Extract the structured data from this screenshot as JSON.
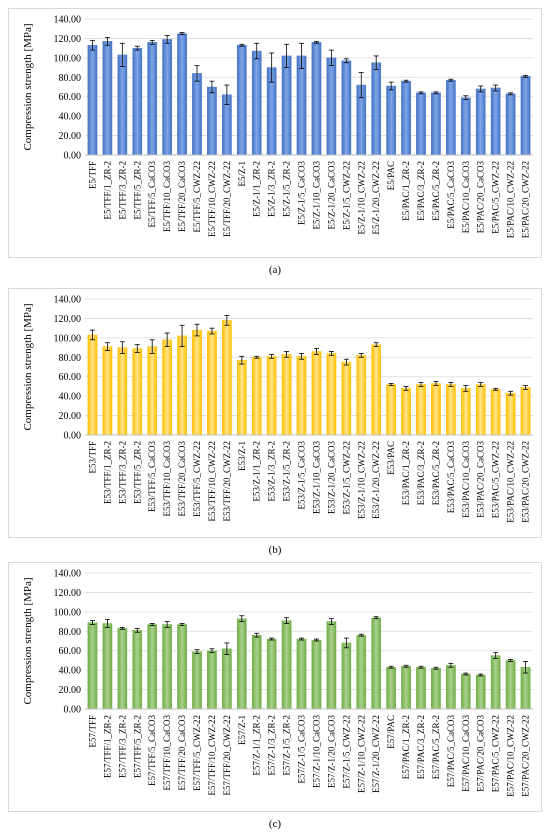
{
  "chart_data": [
    {
      "type": "bar",
      "panel_label": "(a)",
      "ylabel": "Compression strength [MPa]",
      "ylim": [
        0,
        140
      ],
      "yticks": [
        "0.00",
        "20.00",
        "40.00",
        "60.00",
        "80.00",
        "100.00",
        "120.00",
        "140.00"
      ],
      "grid": true,
      "color": "#4472c4",
      "color_light": "#7ea6e8",
      "categories": [
        "E5/TFF",
        "E5/TFF/1_ZR-2",
        "E5/TFF/3_ZR-2",
        "E5/TFF/5_ZR-2",
        "E5/TFF/5_CaCO3",
        "E5/TFF/10_CaCO3",
        "E5/TFF/20_CaCO3",
        "E5/TFF/5_CWZ-22",
        "E5/TFF/10_CWZ-22",
        "E5/TFF/20_CWZ-22",
        "E5/Z-1",
        "E5/Z-1/1_ZR-2",
        "E5/Z-1/3_ZR-2",
        "E5/Z-1/5_ZR-2",
        "E5/Z-1/5_CaCO3",
        "E5/Z-1/10_CaCO3",
        "E5/Z-1/20_CaCO3",
        "E5/Z-1/5_CWZ-22",
        "E5/Z-1/10_CWZ-22",
        "E5/Z-1/20_CWZ-22",
        "E5/PAC",
        "E5/PAC/1_ZR-2",
        "E5/PAC/3_ZR-2",
        "E5/PAC/5_ZR-2",
        "E5/PAC/5_CaCO3",
        "E5/PAC/10_CaCO3",
        "E5/PAC/20_CaCO3",
        "E5/PAC/5_CWZ-22",
        "E5/PAC/10_CWZ-22",
        "E5/PAC/20_CWZ-22"
      ],
      "values": [
        113,
        117,
        103,
        110,
        116,
        119,
        125,
        84,
        70,
        62,
        113,
        107,
        90,
        102,
        102,
        116,
        100,
        97,
        72,
        95,
        71,
        76,
        64,
        64,
        77,
        59,
        68,
        69,
        63,
        81
      ],
      "errors": [
        5,
        4,
        12,
        2,
        2,
        4,
        1,
        8,
        6,
        10,
        1,
        8,
        15,
        12,
        13,
        1,
        8,
        2,
        13,
        7,
        4,
        1,
        1,
        1,
        1,
        2,
        3,
        3,
        1,
        1
      ]
    },
    {
      "type": "bar",
      "panel_label": "(b)",
      "ylabel": "Compression strength [MPa]",
      "ylim": [
        0,
        140
      ],
      "yticks": [
        "0.00",
        "20.00",
        "40.00",
        "60.00",
        "80.00",
        "100.00",
        "120.00",
        "140.00"
      ],
      "grid": true,
      "color": "#ffc000",
      "color_light": "#ffe48a",
      "categories": [
        "E53/TFF",
        "E53/TFF/1_ZR-2",
        "E53/TFF/3_ZR-2",
        "E53/TFF/5_ZR-2",
        "E53/TFF/5_CaCO3",
        "E53/TFF/10_CaCO3",
        "E53/TFF/20_CaCO3",
        "E53/TFF/5_CWZ-22",
        "E53/TFF/10_CWZ-22",
        "E53/TFF/20_CWZ-22",
        "E53/Z-1",
        "E53/Z-1/1_ZR-2",
        "E53/Z-1/3_ZR-2",
        "E53/Z-1/5_ZR-2",
        "E53/Z-1/5_CaCO3",
        "E53/Z-1/10_CaCO3",
        "E53/Z-1/20_CaCO3",
        "E53/Z-1/5_CWZ-22",
        "E53/Z-1/10_CWZ-22",
        "E53/Z-1/20_CWZ-22",
        "E53/PAC",
        "E53/PAC/1_ZR-2",
        "E53/PAC/3_ZR-2",
        "E53/PAC/5_ZR-2",
        "E53/PAC/5_CaCO3",
        "E53/PAC/10_CaCO3",
        "E53/PAC/20_CaCO3",
        "E53/PAC/5_CWZ-22",
        "E53/PAC/10_CWZ-22",
        "E53/PAC/20_CWZ-22"
      ],
      "values": [
        103,
        91,
        90,
        89,
        91,
        98,
        102,
        108,
        107,
        118,
        77,
        80,
        81,
        83,
        81,
        86,
        84,
        75,
        82,
        93,
        52,
        48,
        52,
        53,
        52,
        48,
        52,
        47,
        43,
        49
      ],
      "errors": [
        5,
        4,
        6,
        4,
        7,
        7,
        11,
        6,
        3,
        5,
        4,
        1,
        2,
        3,
        3,
        3,
        2,
        3,
        2,
        2,
        1,
        2,
        2,
        2,
        2,
        3,
        2,
        1,
        2,
        2
      ]
    },
    {
      "type": "bar",
      "panel_label": "(c)",
      "ylabel": "Compression strength [MPa]",
      "ylim": [
        0,
        140
      ],
      "yticks": [
        "0.00",
        "20.00",
        "40.00",
        "60.00",
        "80.00",
        "100.00",
        "120.00",
        "140.00"
      ],
      "grid": true,
      "color": "#70ad47",
      "color_light": "#a9d18e",
      "categories": [
        "E57/TFF",
        "E57/TFF/1_ZR-2",
        "E57/TFF/3_ZR-2",
        "E57/TFF/5_ZR-2",
        "E57/TFF/5_CaCO3",
        "E57/TFF/10_CaCO3",
        "E57/TFF/20_CaCO3",
        "E57/TFF/5_CWZ-22",
        "E57/TFF/10_CWZ-22",
        "E57/TFF/20_CWZ-22",
        "E57/Z-1",
        "E57/Z-1/1_ZR-2",
        "E57/Z-1/3_ZR-2",
        "E57/Z-1/5_ZR-2",
        "E57/Z-1/5_CaCO3",
        "E57/Z-1/10_CaCO3",
        "E57/Z-1/20_CaCO3",
        "E57/Z-1/5_CWZ-22",
        "E57/Z-1/10_CWZ-22",
        "E57/Z-1/20_CWZ-22",
        "E57/PAC",
        "E57/PAC/1_ZR-2",
        "E57/PAC/3_ZR-2",
        "E57/PAC/5_ZR-2",
        "E57/PAC/5_CaCO3",
        "E57/PAC/10_CaCO3",
        "E57/PAC/20_CaCO3",
        "E57/PAC/5_CWZ-22",
        "E57/PAC/10_CWZ-22",
        "E57/PAC/20_CWZ-22"
      ],
      "values": [
        89,
        88,
        83,
        81,
        87,
        87,
        87,
        59,
        60,
        62,
        93,
        76,
        72,
        91,
        72,
        71,
        90,
        68,
        76,
        94,
        43,
        44,
        43,
        42,
        45,
        36,
        35,
        55,
        50,
        43
      ],
      "errors": [
        2,
        4,
        1,
        2,
        1,
        3,
        1,
        2,
        2,
        6,
        3,
        2,
        1,
        3,
        1,
        1,
        3,
        5,
        1,
        1,
        1,
        1,
        1,
        1,
        2,
        1,
        1,
        3,
        1,
        6
      ]
    }
  ]
}
